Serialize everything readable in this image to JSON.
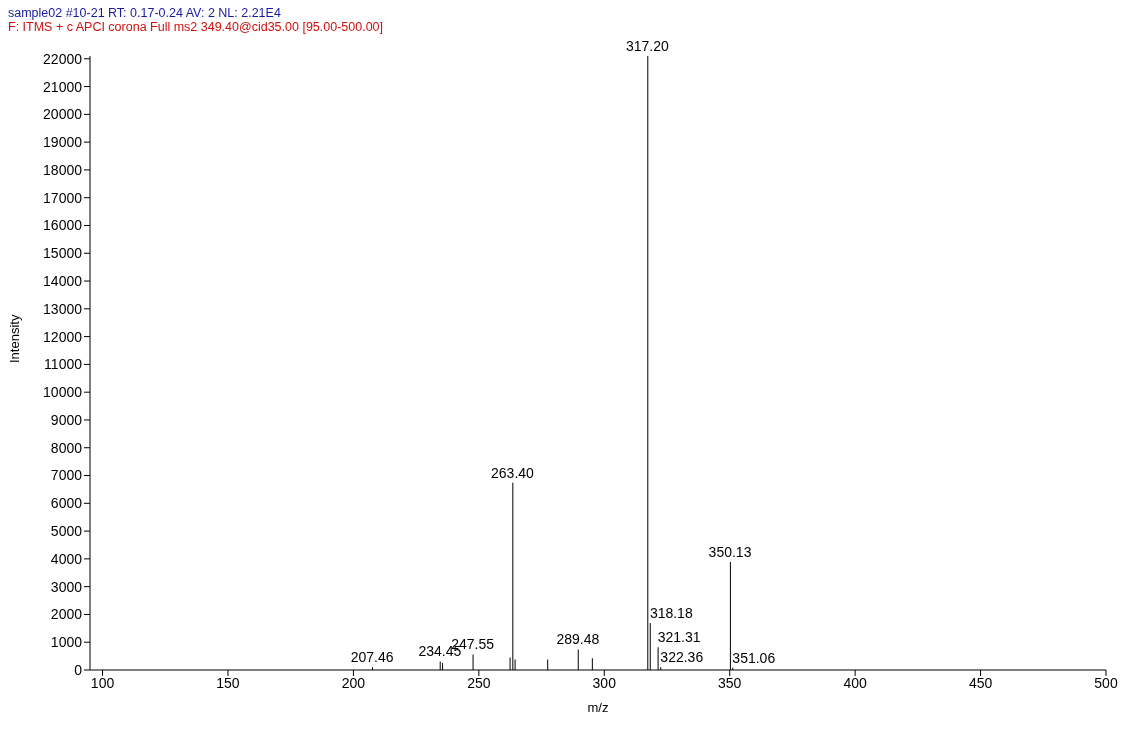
{
  "chart_data": {
    "type": "bar",
    "title": "sample02 #10-21   RT: 0.17-0.24   AV: 2   NL: 2.21E4",
    "subtitle": "F: ITMS + c APCI corona Full ms2 349.40@cid35.00 [95.00-500.00]",
    "xlabel": "m/z",
    "ylabel": "Intensity",
    "x": [
      207.46,
      234.45,
      235.4,
      247.55,
      262.3,
      263.4,
      264.3,
      277.3,
      289.48,
      295.1,
      317.2,
      318.18,
      321.31,
      322.36,
      350.13,
      351.06
    ],
    "series": [
      {
        "color": "#000000",
        "values": [
          100,
          310,
          250,
          560,
          450,
          6740,
          380,
          380,
          740,
          420,
          22100,
          1690,
          820,
          100,
          3890,
          80
        ]
      }
    ],
    "annotations": [
      {
        "text": "207.46",
        "x": 207.46,
        "y": 100
      },
      {
        "text": "234.45",
        "x": 234.45,
        "y": 310
      },
      {
        "text": "247.55",
        "x": 247.55,
        "y": 560
      },
      {
        "text": "263.40",
        "x": 263.4,
        "y": 6740
      },
      {
        "text": "289.48",
        "x": 289.48,
        "y": 740
      },
      {
        "text": "317.20",
        "x": 317.2,
        "y": 22100
      },
      {
        "text": "318.18",
        "x": 318.18,
        "y": 1690
      },
      {
        "text": "321.31",
        "x": 321.31,
        "y": 820
      },
      {
        "text": "322.36",
        "x": 322.36,
        "y": 100
      },
      {
        "text": "350.13",
        "x": 350.13,
        "y": 3890
      },
      {
        "text": "351.06",
        "x": 351.06,
        "y": 80
      }
    ],
    "xlim": [
      95,
      500
    ],
    "xticks": [
      100,
      150,
      200,
      250,
      300,
      350,
      400,
      450,
      500
    ],
    "ylim": [
      0,
      22100
    ],
    "yticks": [
      0,
      1000,
      2000,
      3000,
      4000,
      5000,
      6000,
      7000,
      8000,
      9000,
      10000,
      11000,
      12000,
      13000,
      14000,
      15000,
      16000,
      17000,
      18000,
      19000,
      20000,
      21000,
      22000
    ],
    "grid": false,
    "legend": false
  }
}
